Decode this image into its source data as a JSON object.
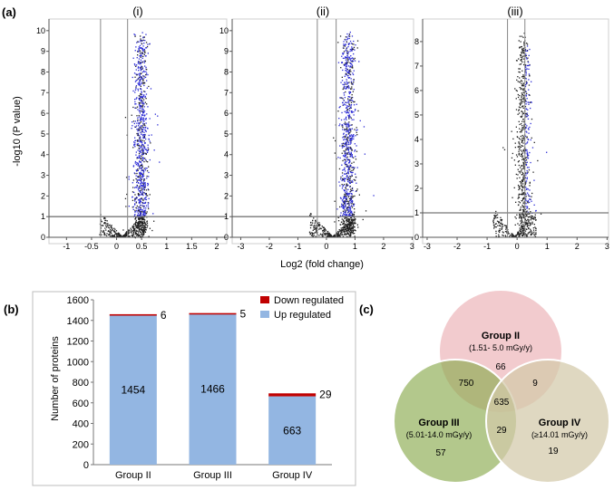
{
  "panel_labels": {
    "a": "(a)",
    "b": "(b)",
    "c": "(c)"
  },
  "colors": {
    "up": "#93b6e2",
    "down": "#c00000",
    "blue_points": "#2b2bd6",
    "black_points": "#222222",
    "venn_ii": "#e8a0a5",
    "venn_iii": "#8aaa4e",
    "venn_iv": "#d2c9a9"
  },
  "chart_data": [
    {
      "type": "scatter",
      "name": "volcano-i",
      "subtitle": "(i)",
      "xlabel": "Log2 (fold change)",
      "ylabel": "-log10 (P value)",
      "xlim": [
        -1.35,
        2.2
      ],
      "ylim": [
        0,
        10.3
      ],
      "xticks": [
        -1,
        -0.5,
        0,
        0.5,
        1,
        1.5,
        2
      ],
      "xtick_labels": [
        "-1",
        "-0.5",
        "0",
        "0.5",
        "1",
        "1.5",
        "2"
      ],
      "yticks": [
        0,
        1,
        2,
        3,
        4,
        5,
        6,
        7,
        8,
        9,
        10
      ],
      "ytick_labels": [
        "0",
        "1",
        "2",
        "3",
        "4",
        "5",
        "6",
        "7",
        "8",
        "9",
        "10"
      ],
      "threshold_y": 1,
      "threshold_x": [
        -0.32,
        0.22
      ],
      "cloud": {
        "center_x": 0.48,
        "spread_x": 0.1,
        "max_y": 10,
        "n": 1300,
        "vshape_x0": 0.1
      }
    },
    {
      "type": "scatter",
      "name": "volcano-ii",
      "subtitle": "(ii)",
      "xlim": [
        -3.3,
        3.05
      ],
      "ylim": [
        0,
        10.3
      ],
      "xticks": [
        -3,
        -2,
        -1,
        0,
        1,
        2,
        3
      ],
      "xtick_labels": [
        "-3",
        "-2",
        "-1",
        "0",
        "1",
        "2",
        "3"
      ],
      "yticks": [
        0,
        1,
        2,
        3,
        4,
        5,
        6,
        7,
        8,
        9,
        10
      ],
      "ytick_labels": [
        "0",
        "1",
        "2",
        "3",
        "4",
        "5",
        "6",
        "7",
        "8",
        "9",
        "10"
      ],
      "threshold_y": 1,
      "threshold_x": [
        -0.32,
        0.34
      ],
      "cloud": {
        "center_x": 0.75,
        "spread_x": 0.18,
        "max_y": 10,
        "n": 1300,
        "vshape_x0": 0.2
      }
    },
    {
      "type": "scatter",
      "name": "volcano-iii",
      "subtitle": "(iii)",
      "xlim": [
        -3.15,
        3.05
      ],
      "ylim": [
        0,
        8.7
      ],
      "xticks": [
        -3,
        -2,
        -1,
        0,
        1,
        2,
        3
      ],
      "xtick_labels": [
        "-3",
        "-2",
        "-1",
        "0",
        "1",
        "2",
        "3"
      ],
      "yticks": [
        0,
        1,
        2,
        3,
        4,
        5,
        6,
        7,
        8
      ],
      "ytick_labels": [
        "0",
        "1",
        "2",
        "3",
        "4",
        "5",
        "6",
        "7",
        "8"
      ],
      "threshold_y": 1,
      "threshold_x": [
        -0.32,
        0.26
      ],
      "cloud": {
        "center_x": 0.2,
        "spread_x": 0.16,
        "max_y": 8.4,
        "n": 900,
        "vshape_x0": -0.1
      }
    },
    {
      "type": "bar",
      "name": "proteins-bar",
      "stacked": true,
      "categories": [
        "Group II",
        "Group III",
        "Group IV"
      ],
      "series": [
        {
          "name": "Up regulated",
          "values": [
            1454,
            1466,
            663
          ]
        },
        {
          "name": "Down regulated",
          "values": [
            6,
            5,
            29
          ]
        }
      ],
      "ylabel": "Number of proteins",
      "ylim": [
        0,
        1600
      ],
      "yticks": [
        0,
        200,
        400,
        600,
        800,
        1000,
        1200,
        1400,
        1600
      ],
      "ytick_labels": [
        "0",
        "200",
        "400",
        "600",
        "800",
        "1000",
        "1200",
        "1400",
        "1600"
      ],
      "legend": [
        "Down regulated",
        "Up regulated"
      ],
      "legend_position": "top-right"
    },
    {
      "type": "venn",
      "name": "groups-venn",
      "sets": [
        {
          "name": "Group II",
          "range": "(1.51- 5.0 mGy/y)",
          "only": "66"
        },
        {
          "name": "Group III",
          "range": "(5.01-14.0 mGy/y)",
          "only": "57"
        },
        {
          "name": "Group IV",
          "range": "(≥14.01 mGy/y)",
          "only": "19"
        }
      ],
      "overlaps": {
        "II_III": "750",
        "II_IV": "9",
        "III_IV": "29",
        "all": "635"
      }
    }
  ]
}
